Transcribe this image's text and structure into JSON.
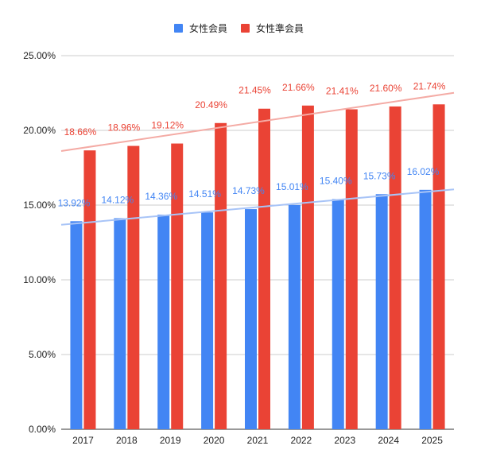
{
  "chart_data": {
    "type": "bar",
    "categories": [
      "2017",
      "2018",
      "2019",
      "2020",
      "2021",
      "2022",
      "2023",
      "2024",
      "2025"
    ],
    "series": [
      {
        "name": "女性会員",
        "color": "#4285f4",
        "trendline_color": "#a8c4f7",
        "values": [
          13.92,
          14.12,
          14.36,
          14.51,
          14.73,
          15.01,
          15.4,
          15.73,
          16.02
        ],
        "labels": [
          "13.92%",
          "14.12%",
          "14.36%",
          "14.51%",
          "14.73%",
          "15.01%",
          "15.40%",
          "15.73%",
          "16.02%"
        ]
      },
      {
        "name": "女性準会員",
        "color": "#ea4335",
        "trendline_color": "#f4aba5",
        "values": [
          18.66,
          18.96,
          19.12,
          20.49,
          21.45,
          21.66,
          21.41,
          21.6,
          21.74
        ],
        "labels": [
          "18.66%",
          "18.96%",
          "19.12%",
          "20.49%",
          "21.45%",
          "21.66%",
          "21.41%",
          "21.60%",
          "21.74%"
        ]
      }
    ],
    "ylim": [
      0,
      25
    ],
    "yticks": [
      {
        "value": 0,
        "label": "0.00%"
      },
      {
        "value": 5,
        "label": "5.00%"
      },
      {
        "value": 10,
        "label": "10.00%"
      },
      {
        "value": 15,
        "label": "15.00%"
      },
      {
        "value": 20,
        "label": "20.00%"
      },
      {
        "value": 25,
        "label": "25.00%"
      }
    ],
    "trendlines": true,
    "grid": true,
    "legend_position": "top"
  }
}
